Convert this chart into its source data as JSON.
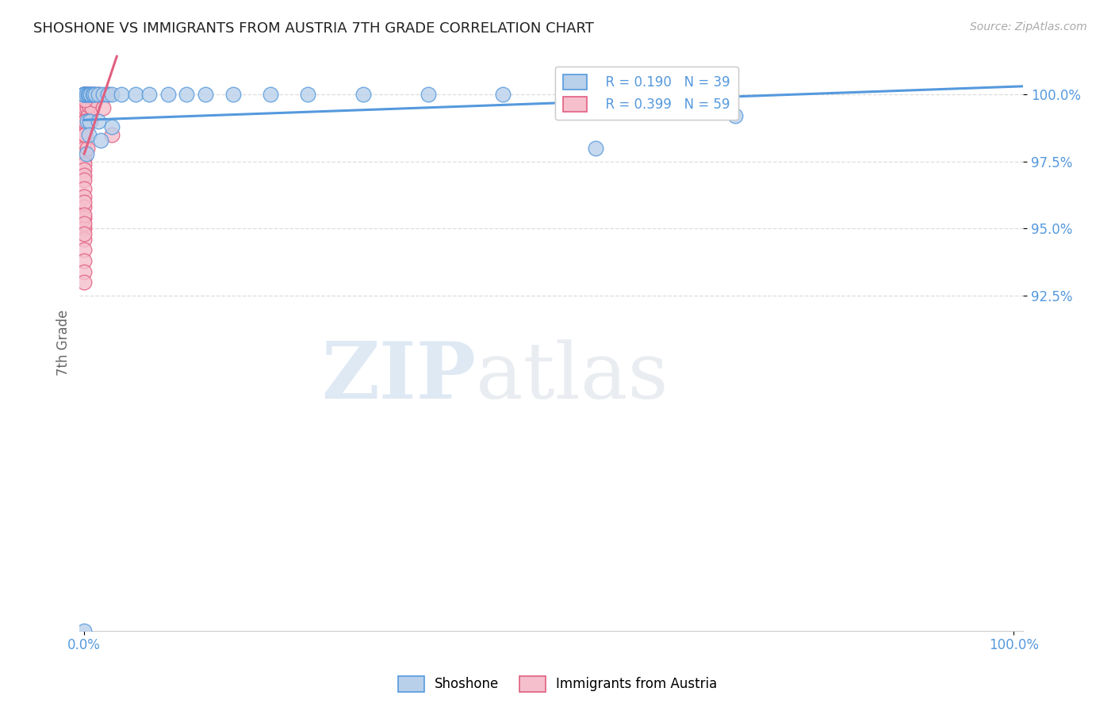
{
  "title": "SHOSHONE VS IMMIGRANTS FROM AUSTRIA 7TH GRADE CORRELATION CHART",
  "source_text": "Source: ZipAtlas.com",
  "ylabel": "7th Grade",
  "legend_r1": "R = 0.190",
  "legend_n1": "N = 39",
  "legend_r2": "R = 0.399",
  "legend_n2": "N = 59",
  "watermark_zip": "ZIP",
  "watermark_atlas": "atlas",
  "blue_color": "#b8d0ea",
  "pink_color": "#f5bfcc",
  "blue_line_color": "#5599dd",
  "pink_line_color": "#e06080",
  "blue_scatter": [
    [
      0.0,
      100.0
    ],
    [
      0.0,
      100.0
    ],
    [
      0.0,
      100.0
    ],
    [
      0.0,
      100.0
    ],
    [
      0.0,
      100.0
    ],
    [
      0.2,
      100.0
    ],
    [
      0.4,
      100.0
    ],
    [
      0.5,
      100.0
    ],
    [
      0.7,
      100.0
    ],
    [
      0.7,
      100.0
    ],
    [
      0.9,
      100.0
    ],
    [
      1.0,
      100.0
    ],
    [
      1.2,
      100.0
    ],
    [
      1.5,
      100.0
    ],
    [
      2.0,
      100.0
    ],
    [
      2.5,
      100.0
    ],
    [
      3.0,
      100.0
    ],
    [
      4.0,
      100.0
    ],
    [
      5.5,
      100.0
    ],
    [
      7.0,
      100.0
    ],
    [
      9.0,
      100.0
    ],
    [
      11.0,
      100.0
    ],
    [
      13.0,
      100.0
    ],
    [
      16.0,
      100.0
    ],
    [
      20.0,
      100.0
    ],
    [
      24.0,
      100.0
    ],
    [
      30.0,
      100.0
    ],
    [
      37.0,
      100.0
    ],
    [
      45.0,
      100.0
    ],
    [
      0.3,
      99.0
    ],
    [
      0.6,
      99.0
    ],
    [
      1.5,
      99.0
    ],
    [
      3.0,
      98.8
    ],
    [
      0.5,
      98.5
    ],
    [
      1.8,
      98.3
    ],
    [
      55.0,
      98.0
    ],
    [
      0.2,
      97.8
    ],
    [
      70.0,
      99.2
    ],
    [
      0.0,
      80.0
    ]
  ],
  "pink_scatter": [
    [
      0.0,
      100.0
    ],
    [
      0.0,
      100.0
    ],
    [
      0.0,
      100.0
    ],
    [
      0.0,
      100.0
    ],
    [
      0.0,
      99.8
    ],
    [
      0.0,
      99.6
    ],
    [
      0.0,
      99.4
    ],
    [
      0.0,
      99.2
    ],
    [
      0.0,
      99.0
    ],
    [
      0.0,
      98.8
    ],
    [
      0.0,
      98.6
    ],
    [
      0.0,
      98.4
    ],
    [
      0.0,
      98.2
    ],
    [
      0.0,
      98.0
    ],
    [
      0.0,
      97.8
    ],
    [
      0.0,
      97.6
    ],
    [
      0.0,
      97.4
    ],
    [
      0.0,
      97.2
    ],
    [
      0.0,
      97.0
    ],
    [
      0.0,
      96.8
    ],
    [
      0.0,
      96.5
    ],
    [
      0.0,
      96.2
    ],
    [
      0.0,
      95.8
    ],
    [
      0.0,
      95.4
    ],
    [
      0.0,
      95.0
    ],
    [
      0.0,
      94.6
    ],
    [
      0.0,
      94.2
    ],
    [
      0.0,
      93.8
    ],
    [
      0.0,
      93.4
    ],
    [
      0.0,
      93.0
    ],
    [
      0.1,
      100.0
    ],
    [
      0.1,
      99.5
    ],
    [
      0.15,
      100.0
    ],
    [
      0.2,
      99.8
    ],
    [
      0.2,
      99.0
    ],
    [
      0.25,
      98.8
    ],
    [
      0.3,
      99.5
    ],
    [
      0.4,
      99.2
    ],
    [
      0.5,
      99.6
    ],
    [
      0.6,
      100.0
    ],
    [
      0.7,
      99.0
    ],
    [
      0.8,
      99.5
    ],
    [
      1.0,
      100.0
    ],
    [
      1.2,
      99.8
    ],
    [
      1.5,
      100.0
    ],
    [
      2.0,
      99.5
    ],
    [
      2.5,
      100.0
    ],
    [
      3.0,
      98.5
    ],
    [
      0.1,
      98.5
    ],
    [
      0.15,
      99.0
    ],
    [
      0.35,
      98.0
    ],
    [
      0.3,
      100.0
    ],
    [
      0.05,
      99.8
    ],
    [
      0.05,
      99.0
    ],
    [
      0.05,
      98.5
    ],
    [
      0.0,
      96.0
    ],
    [
      0.0,
      95.5
    ],
    [
      0.0,
      95.2
    ],
    [
      0.0,
      94.8
    ]
  ],
  "ylim_min": 80.0,
  "ylim_max": 101.5,
  "xlim_min": -0.5,
  "xlim_max": 101.0,
  "yticks": [
    92.5,
    95.0,
    97.5,
    100.0
  ],
  "ytick_labels": [
    "92.5%",
    "95.0%",
    "97.5%",
    "100.0%"
  ],
  "grid_color": "#dddddd",
  "background_color": "#ffffff",
  "title_color": "#222222",
  "axis_label_color": "#666666",
  "tick_label_color": "#5599dd"
}
